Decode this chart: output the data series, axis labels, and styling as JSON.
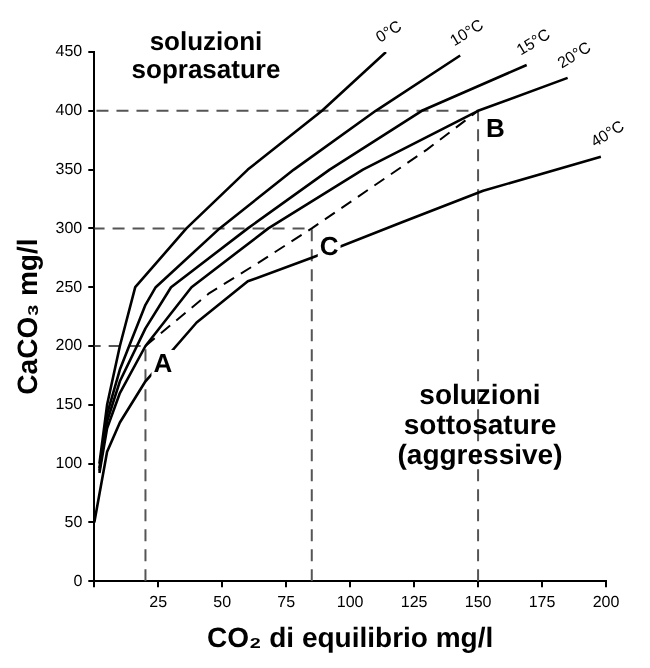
{
  "chart_data": {
    "type": "line",
    "xlabel": "CO₂ di equilibrio mg/l",
    "ylabel": "CaCO₃ mg/l",
    "xlim": [
      0,
      200
    ],
    "ylim": [
      0,
      450
    ],
    "xticks": [
      {
        "value": 0,
        "label": null
      },
      25,
      50,
      75,
      100,
      125,
      150,
      175,
      200
    ],
    "yticks": [
      0,
      50,
      100,
      150,
      200,
      250,
      300,
      350,
      400,
      450
    ],
    "grid": false,
    "legend": false,
    "marker": "none",
    "series": [
      {
        "name": "0°C",
        "color": "#000000",
        "x": [
          2,
          5,
          10,
          16,
          36,
          60,
          89,
          114
        ],
        "values": [
          100,
          150,
          200,
          250,
          300,
          350,
          400,
          450
        ]
      },
      {
        "name": "10°C",
        "color": "#000000",
        "x": [
          2,
          5,
          10,
          20,
          24,
          49,
          78,
          110,
          143
        ],
        "values": [
          96,
          142,
          180,
          235,
          250,
          300,
          350,
          400,
          447
        ]
      },
      {
        "name": "15°C",
        "color": "#000000",
        "x": [
          2,
          5,
          10,
          20,
          30,
          60,
          92,
          128,
          169
        ],
        "values": [
          94,
          136,
          170,
          215,
          250,
          300,
          350,
          400,
          439
        ]
      },
      {
        "name": "20°C",
        "color": "#000000",
        "x": [
          2,
          5,
          10,
          20,
          38,
          68,
          105,
          150,
          185
        ],
        "values": [
          92,
          130,
          160,
          200,
          250,
          300,
          350,
          400,
          428
        ]
      },
      {
        "name": "40°C",
        "color": "#000000",
        "x": [
          0,
          5,
          10,
          20,
          40,
          60,
          85,
          120,
          152,
          198
        ],
        "values": [
          50,
          110,
          135,
          170,
          220,
          255,
          275,
          305,
          332,
          361
        ]
      },
      {
        "color": "#000000",
        "line_style": "dashed",
        "x": [
          20,
          45,
          65,
          85,
          130,
          150
        ],
        "values": [
          200,
          245,
          272,
          300,
          367,
          400
        ]
      },
      {
        "color": "#555555",
        "line_style": "dashed",
        "x": [
          20,
          20,
          0
        ],
        "values": [
          0,
          200,
          200
        ]
      },
      {
        "color": "#555555",
        "line_style": "dashed",
        "x": [
          85,
          85,
          0
        ],
        "values": [
          0,
          300,
          300
        ]
      },
      {
        "color": "#555555",
        "line_style": "dashed",
        "x": [
          150,
          150,
          0
        ],
        "values": [
          0,
          400,
          400
        ]
      }
    ],
    "annotations": [
      "soluzioni soprasature",
      "soluzioni sottosature (aggressive)",
      {
        "text": "A",
        "x": 20,
        "y": 200
      },
      {
        "text": "B",
        "x": 150,
        "y": 400
      },
      {
        "text": "C",
        "x": 85,
        "y": 300
      }
    ]
  }
}
